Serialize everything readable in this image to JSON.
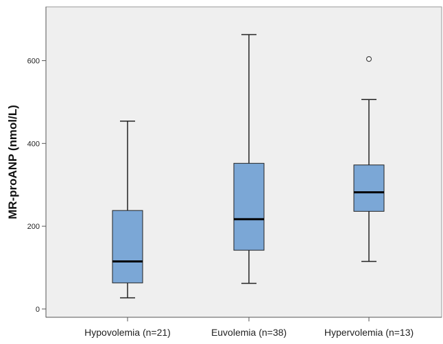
{
  "chart_data": {
    "type": "boxplot",
    "title": "",
    "xlabel": "",
    "ylabel": "MR-proANP (nmol/L)",
    "ylim": [
      -20,
      730
    ],
    "yticks": [
      0,
      200,
      400,
      600
    ],
    "grid": false,
    "categories": [
      "Hypovolemia (n=21)",
      "Euvolemia (n=38)",
      "Hypervolemia (n=13)"
    ],
    "boxes": [
      {
        "whisker_low": 27,
        "q1": 63,
        "median": 115,
        "q3": 238,
        "whisker_high": 454,
        "outliers": []
      },
      {
        "whisker_low": 62,
        "q1": 142,
        "median": 217,
        "q3": 352,
        "whisker_high": 663,
        "outliers": []
      },
      {
        "whisker_low": 115,
        "q1": 236,
        "median": 282,
        "q3": 348,
        "whisker_high": 506,
        "outliers": [
          604
        ]
      }
    ],
    "colors": {
      "box_fill": "#7ba7d6",
      "box_stroke": "#222222",
      "plot_bg": "#efefef",
      "outlier_fill": "#ffffff"
    }
  }
}
